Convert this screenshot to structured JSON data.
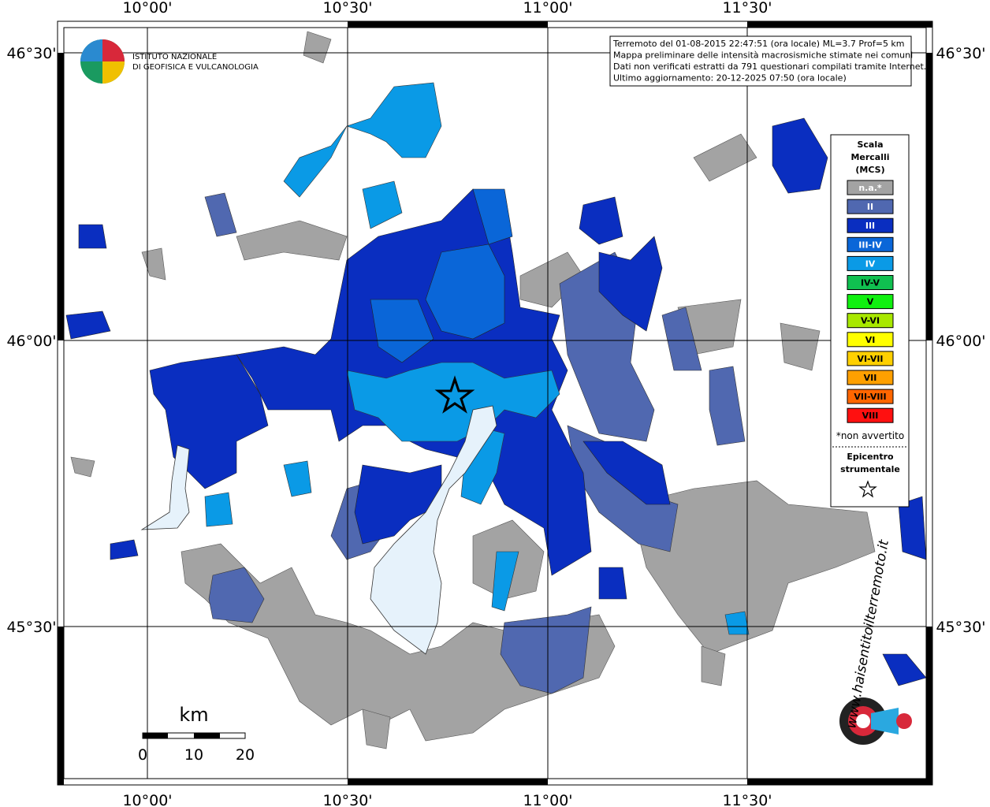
{
  "map": {
    "lon_labels": [
      "10°00'",
      "10°30'",
      "11°00'",
      "11°30'"
    ],
    "lat_labels": [
      "46°30'",
      "46°00'",
      "45°30'"
    ],
    "info": [
      "Terremoto del 01-08-2015 22:47:51 (ora locale) ML=3.7 Prof=5 km",
      "Mappa preliminare delle intensità macrosismiche stimate nei comuni",
      "Dati non verificati estratti da 791 questionari compilati tramite Internet.",
      "Ultimo aggiornamento: 20-12-2025 07:50 (ora locale)"
    ],
    "logo": [
      "ISTITUTO NAZIONALE",
      "DI GEOFISICA E VULCANOLOGIA"
    ],
    "legend": {
      "title": [
        "Scala",
        "Mercalli",
        "(MCS)"
      ],
      "items": [
        {
          "label": "n.a.*",
          "color": "#a3a3a3"
        },
        {
          "label": "II",
          "color": "#5068b0"
        },
        {
          "label": "III",
          "color": "#0a2ec0"
        },
        {
          "label": "III-IV",
          "color": "#0a66d8"
        },
        {
          "label": "IV",
          "color": "#0a9ae6"
        },
        {
          "label": "IV-V",
          "color": "#10c050"
        },
        {
          "label": "V",
          "color": "#10f010"
        },
        {
          "label": "V-VI",
          "color": "#a8e800"
        },
        {
          "label": "VI",
          "color": "#ffff00"
        },
        {
          "label": "VI-VII",
          "color": "#ffd000"
        },
        {
          "label": "VII",
          "color": "#ffa000"
        },
        {
          "label": "VII-VIII",
          "color": "#ff6600"
        },
        {
          "label": "VIII",
          "color": "#ff1010"
        }
      ],
      "note": "*non avvertito",
      "epicenter": [
        "Epicentro",
        "strumentale"
      ]
    },
    "scale": {
      "unit": "km",
      "labels": [
        "0",
        "10",
        "20"
      ]
    },
    "brand": "www.haisentitoilterremoto.it"
  }
}
